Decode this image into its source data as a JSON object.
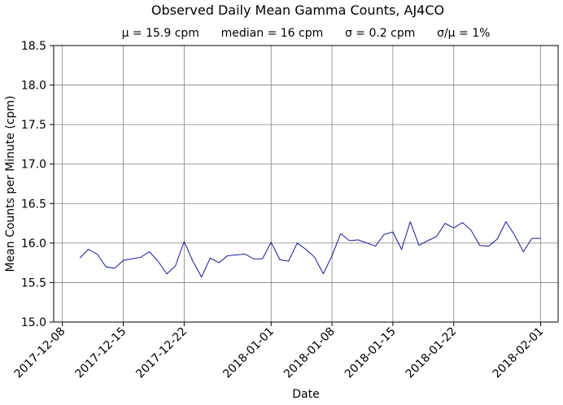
{
  "chart_data": {
    "type": "line",
    "title": "Observed Daily Mean Gamma Counts, AJ4CO",
    "subtitle": "μ = 15.9 cpm      median = 16 cpm      σ = 0.2 cpm      σ/μ = 1%",
    "xlabel": "Date",
    "ylabel": "Mean Counts per Minute (cpm)",
    "ylim": [
      15.0,
      18.5
    ],
    "xlim": [
      "2017-12-07",
      "2018-02-03"
    ],
    "y_ticks": [
      "15.0",
      "15.5",
      "16.0",
      "16.5",
      "17.0",
      "17.5",
      "18.0",
      "18.5"
    ],
    "x_ticks": [
      "2017-12-08",
      "2017-12-15",
      "2017-12-22",
      "2018-01-01",
      "2018-01-08",
      "2018-01-15",
      "2018-01-22",
      "2018-02-01"
    ],
    "grid": true,
    "line_color": "#00008b",
    "series": [
      {
        "x": [
          "2017-12-10",
          "2017-12-11",
          "2017-12-12",
          "2017-12-13",
          "2017-12-14",
          "2017-12-15",
          "2017-12-16",
          "2017-12-17",
          "2017-12-18",
          "2017-12-19",
          "2017-12-20",
          "2017-12-21",
          "2017-12-22",
          "2017-12-23",
          "2017-12-24",
          "2017-12-25",
          "2017-12-26",
          "2017-12-27",
          "2017-12-28",
          "2017-12-29",
          "2017-12-30",
          "2017-12-31",
          "2018-01-01",
          "2018-01-02",
          "2018-01-03",
          "2018-01-04",
          "2018-01-05",
          "2018-01-06",
          "2018-01-07",
          "2018-01-08",
          "2018-01-09",
          "2018-01-10",
          "2018-01-11",
          "2018-01-12",
          "2018-01-13",
          "2018-01-14",
          "2018-01-15",
          "2018-01-16",
          "2018-01-17",
          "2018-01-18",
          "2018-01-19",
          "2018-01-20",
          "2018-01-21",
          "2018-01-22",
          "2018-01-23",
          "2018-01-24",
          "2018-01-25",
          "2018-01-26",
          "2018-01-27",
          "2018-01-28",
          "2018-01-29",
          "2018-01-30",
          "2018-01-31",
          "2018-02-01"
        ],
        "values": [
          15.81,
          15.92,
          15.86,
          15.7,
          15.68,
          15.78,
          15.8,
          15.82,
          15.89,
          15.77,
          15.61,
          15.71,
          16.02,
          15.77,
          15.57,
          15.81,
          15.75,
          15.84,
          15.85,
          15.86,
          15.8,
          15.8,
          16.01,
          15.79,
          15.77,
          16.0,
          15.92,
          15.82,
          15.61,
          15.84,
          16.12,
          16.03,
          16.04,
          16.0,
          15.96,
          16.11,
          16.14,
          15.92,
          16.27,
          15.97,
          16.03,
          16.08,
          16.25,
          16.19,
          16.26,
          16.16,
          15.97,
          15.96,
          16.05,
          16.27,
          16.1,
          15.89,
          16.06,
          16.06
        ]
      }
    ]
  }
}
